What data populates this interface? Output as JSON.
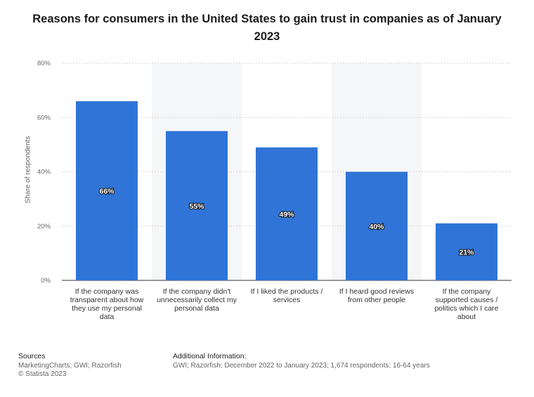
{
  "chart_data": {
    "type": "bar",
    "title": "Reasons for consumers in the United States to gain trust in companies as of January 2023",
    "ylabel": "Share of respondents",
    "xlabel": "",
    "ylim": [
      0,
      80
    ],
    "yticks": [
      "0%",
      "20%",
      "40%",
      "60%",
      "80%"
    ],
    "categories": [
      "If the company was transparent about how they use my personal data",
      "If the company didn't unnecessarily collect my personal data",
      "If I liked the products / services",
      "If I heard good reviews from other people",
      "If the company supported causes / politics which I care about"
    ],
    "values": [
      66,
      55,
      49,
      40,
      21
    ],
    "value_labels": [
      "66%",
      "55%",
      "49%",
      "40%",
      "21%"
    ],
    "bar_color": "#2f74d6",
    "grid": true
  },
  "footer": {
    "sources_heading": "Sources",
    "sources_text": "MarketingCharts; GWI; Razorfish",
    "copyright": "© Statista 2023",
    "additional_heading": "Additional Information:",
    "additional_text": "GWI; Razorfish; December 2022 to January 2023; 1,674 respondents; 16-64 years"
  }
}
